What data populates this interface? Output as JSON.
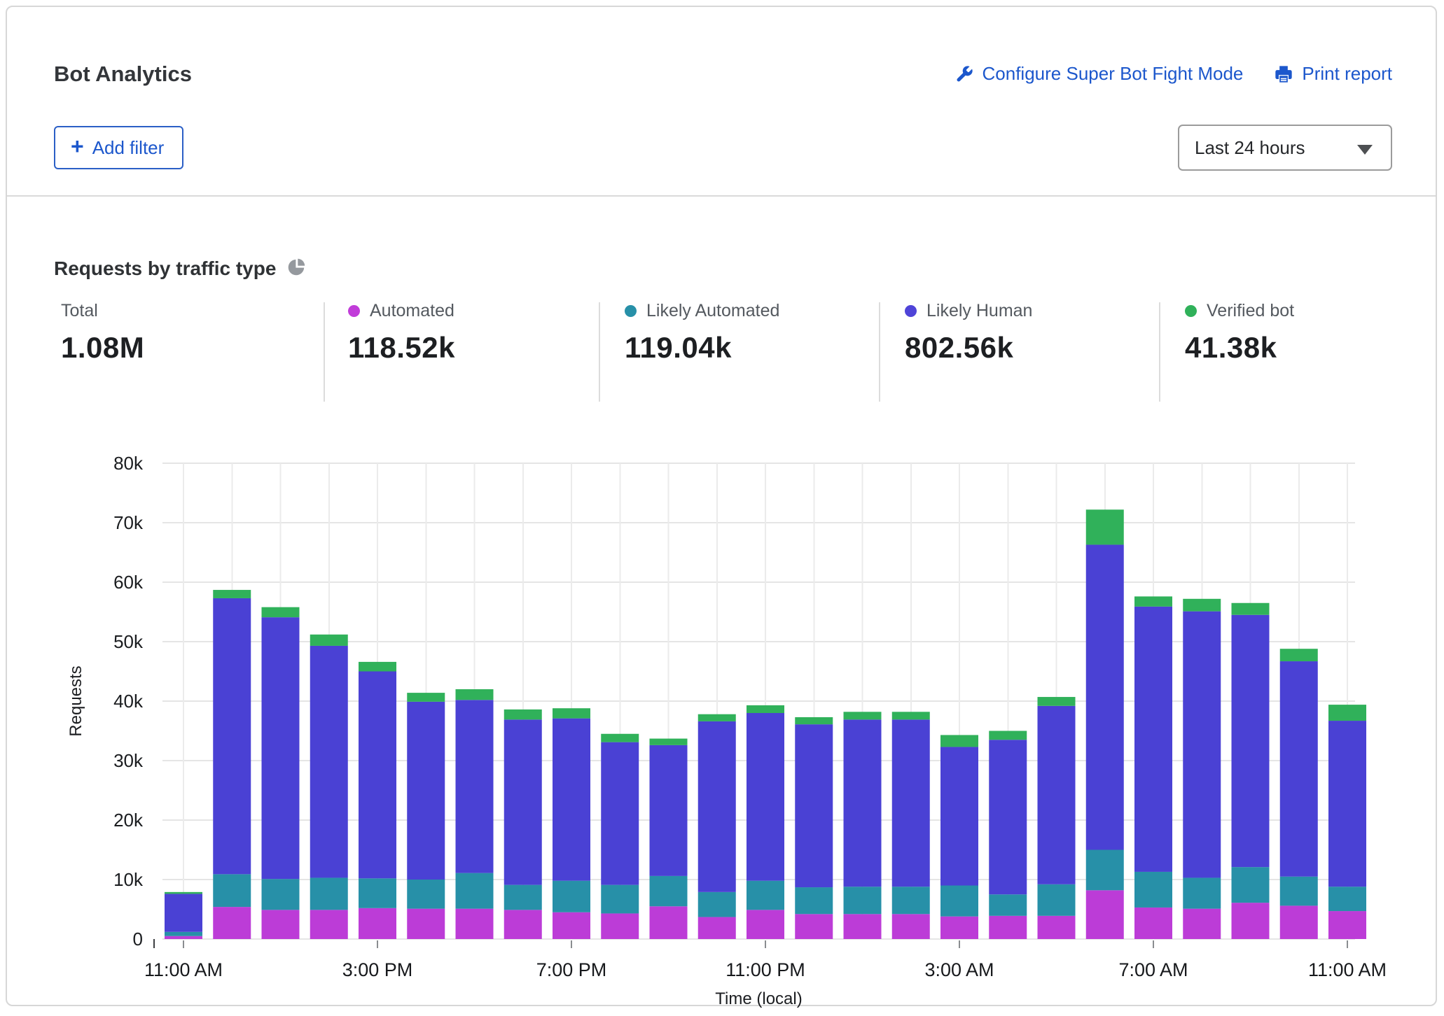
{
  "header": {
    "title": "Bot Analytics",
    "configure_link": "Configure Super Bot Fight Mode",
    "print_link": "Print report",
    "add_filter_label": "Add filter",
    "time_range_value": "Last 24 hours"
  },
  "section": {
    "title": "Requests by traffic type"
  },
  "stats": [
    {
      "label": "Total",
      "value": "1.08M",
      "dot_color": null
    },
    {
      "label": "Automated",
      "value": "118.52k",
      "dot_color": "#c13cd9"
    },
    {
      "label": "Likely Automated",
      "value": "119.04k",
      "dot_color": "#2790a8"
    },
    {
      "label": "Likely Human",
      "value": "802.56k",
      "dot_color": "#4f44d8"
    },
    {
      "label": "Verified bot",
      "value": "41.38k",
      "dot_color": "#30b15a"
    }
  ],
  "chart_data": {
    "type": "bar",
    "stacked": true,
    "title": "Requests by traffic type",
    "xlabel": "Time (local)",
    "ylabel": "Requests",
    "ylim": [
      0,
      80000
    ],
    "grid": true,
    "legend_position": "top-stats-row",
    "y_ticks": [
      "0",
      "10k",
      "20k",
      "30k",
      "40k",
      "50k",
      "60k",
      "70k",
      "80k"
    ],
    "x_tick_labels": [
      "11:00 AM",
      "3:00 PM",
      "7:00 PM",
      "11:00 PM",
      "3:00 AM",
      "7:00 AM",
      "11:00 AM"
    ],
    "x_tick_positions": [
      0,
      4,
      8,
      12,
      16,
      20,
      24
    ],
    "categories": [
      "11:00 AM",
      "12:00 PM",
      "1:00 PM",
      "2:00 PM",
      "3:00 PM",
      "4:00 PM",
      "5:00 PM",
      "6:00 PM",
      "7:00 PM",
      "8:00 PM",
      "9:00 PM",
      "10:00 PM",
      "11:00 PM",
      "12:00 AM",
      "1:00 AM",
      "2:00 AM",
      "3:00 AM",
      "4:00 AM",
      "5:00 AM",
      "6:00 AM",
      "7:00 AM",
      "8:00 AM",
      "9:00 AM",
      "10:00 AM",
      "11:00 AM"
    ],
    "series": [
      {
        "name": "Automated",
        "color": "#bc3cd7",
        "values": [
          500,
          5400,
          4900,
          4900,
          5200,
          5100,
          5100,
          4900,
          4500,
          4300,
          5500,
          3700,
          4900,
          4200,
          4200,
          4200,
          3800,
          3900,
          3900,
          8200,
          5300,
          5100,
          6100,
          5600,
          4700
        ]
      },
      {
        "name": "Likely Automated",
        "color": "#2790a8",
        "values": [
          700,
          5500,
          5200,
          5400,
          5000,
          4900,
          6000,
          4200,
          5300,
          4800,
          5100,
          4200,
          4900,
          4500,
          4600,
          4600,
          5200,
          3600,
          5300,
          6800,
          6000,
          5200,
          6000,
          4900,
          4100
        ]
      },
      {
        "name": "Likely Human",
        "color": "#4a41d4",
        "values": [
          6400,
          46400,
          44000,
          39000,
          34800,
          29900,
          29100,
          27800,
          27300,
          24000,
          22000,
          28700,
          28200,
          27400,
          28100,
          28100,
          23300,
          26000,
          30000,
          51300,
          44600,
          44800,
          42400,
          36200,
          27900
        ]
      },
      {
        "name": "Verified bot",
        "color": "#30b15a",
        "values": [
          300,
          1400,
          1700,
          1900,
          1600,
          1500,
          1800,
          1700,
          1700,
          1400,
          1100,
          1200,
          1300,
          1200,
          1300,
          1300,
          2000,
          1500,
          1500,
          5900,
          1700,
          2100,
          2000,
          2100,
          2700
        ]
      }
    ]
  }
}
